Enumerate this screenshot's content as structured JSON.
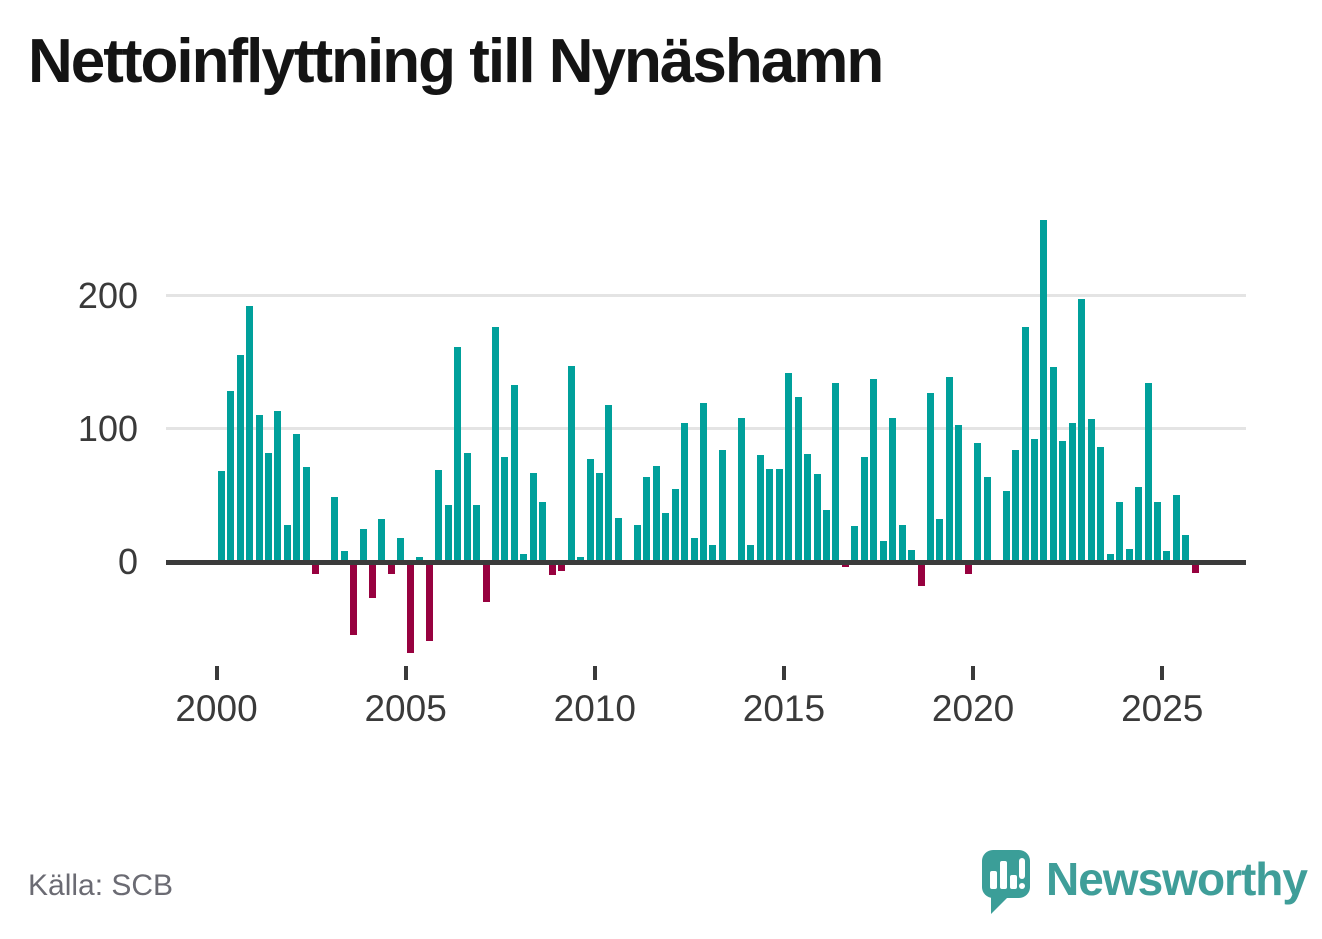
{
  "title": "Nettoinflyttning till Nynäshamn",
  "source": "Källa: SCB",
  "branding": {
    "logo_text": "Newsworthy",
    "logo_icon": "newsworthy-speech-bubble-chart-icon"
  },
  "colors": {
    "positive": "#00a09b",
    "negative": "#97013f",
    "axis": "#3b3b3b",
    "grid": "#e4e4e4",
    "tick_text": "#3a3a3a",
    "muted_text": "#6b6b73",
    "brand": "#3f9e99"
  },
  "chart_data": {
    "type": "bar",
    "title": "Nettoinflyttning till Nynäshamn",
    "xlabel": "",
    "ylabel": "",
    "x_unit": "quarter",
    "start_period": "2000Q1",
    "end_period": "2025Q4",
    "grid": "horizontal",
    "legend": "none",
    "ylim": [
      -70,
      260
    ],
    "y_ticks": [
      0,
      100,
      200
    ],
    "x_tick_years": [
      2000,
      2005,
      2010,
      2015,
      2020,
      2025
    ],
    "categories": [
      "2000Q1",
      "2000Q2",
      "2000Q3",
      "2000Q4",
      "2001Q1",
      "2001Q2",
      "2001Q3",
      "2001Q4",
      "2002Q1",
      "2002Q2",
      "2002Q3",
      "2002Q4",
      "2003Q1",
      "2003Q2",
      "2003Q3",
      "2003Q4",
      "2004Q1",
      "2004Q2",
      "2004Q3",
      "2004Q4",
      "2005Q1",
      "2005Q2",
      "2005Q3",
      "2005Q4",
      "2006Q1",
      "2006Q2",
      "2006Q3",
      "2006Q4",
      "2007Q1",
      "2007Q2",
      "2007Q3",
      "2007Q4",
      "2008Q1",
      "2008Q2",
      "2008Q3",
      "2008Q4",
      "2009Q1",
      "2009Q2",
      "2009Q3",
      "2009Q4",
      "2010Q1",
      "2010Q2",
      "2010Q3",
      "2010Q4",
      "2011Q1",
      "2011Q2",
      "2011Q3",
      "2011Q4",
      "2012Q1",
      "2012Q2",
      "2012Q3",
      "2012Q4",
      "2013Q1",
      "2013Q2",
      "2013Q3",
      "2013Q4",
      "2014Q1",
      "2014Q2",
      "2014Q3",
      "2014Q4",
      "2015Q1",
      "2015Q2",
      "2015Q3",
      "2015Q4",
      "2016Q1",
      "2016Q2",
      "2016Q3",
      "2016Q4",
      "2017Q1",
      "2017Q2",
      "2017Q3",
      "2017Q4",
      "2018Q1",
      "2018Q2",
      "2018Q3",
      "2018Q4",
      "2019Q1",
      "2019Q2",
      "2019Q3",
      "2019Q4",
      "2020Q1",
      "2020Q2",
      "2020Q3",
      "2020Q4",
      "2021Q1",
      "2021Q2",
      "2021Q3",
      "2021Q4",
      "2022Q1",
      "2022Q2",
      "2022Q3",
      "2022Q4",
      "2023Q1",
      "2023Q2",
      "2023Q3",
      "2023Q4",
      "2024Q1",
      "2024Q2",
      "2024Q3",
      "2024Q4",
      "2025Q1",
      "2025Q2",
      "2025Q3",
      "2025Q4"
    ],
    "values": [
      68,
      128,
      155,
      192,
      110,
      82,
      113,
      28,
      96,
      71,
      -9,
      0,
      49,
      8,
      -55,
      25,
      -27,
      32,
      -9,
      18,
      -68,
      4,
      -59,
      69,
      43,
      161,
      82,
      43,
      -30,
      176,
      79,
      133,
      6,
      67,
      45,
      -10,
      -7,
      147,
      4,
      77,
      67,
      118,
      33,
      0,
      28,
      64,
      72,
      37,
      55,
      104,
      18,
      119,
      13,
      84,
      0,
      108,
      13,
      80,
      70,
      70,
      142,
      124,
      81,
      66,
      39,
      134,
      -4,
      27,
      79,
      137,
      16,
      108,
      28,
      9,
      -18,
      127,
      32,
      139,
      103,
      -9,
      89,
      64,
      0,
      53,
      84,
      176,
      92,
      257,
      146,
      91,
      104,
      197,
      107,
      86,
      6,
      45,
      10,
      56,
      134,
      45,
      8,
      50,
      20,
      -8
    ]
  }
}
